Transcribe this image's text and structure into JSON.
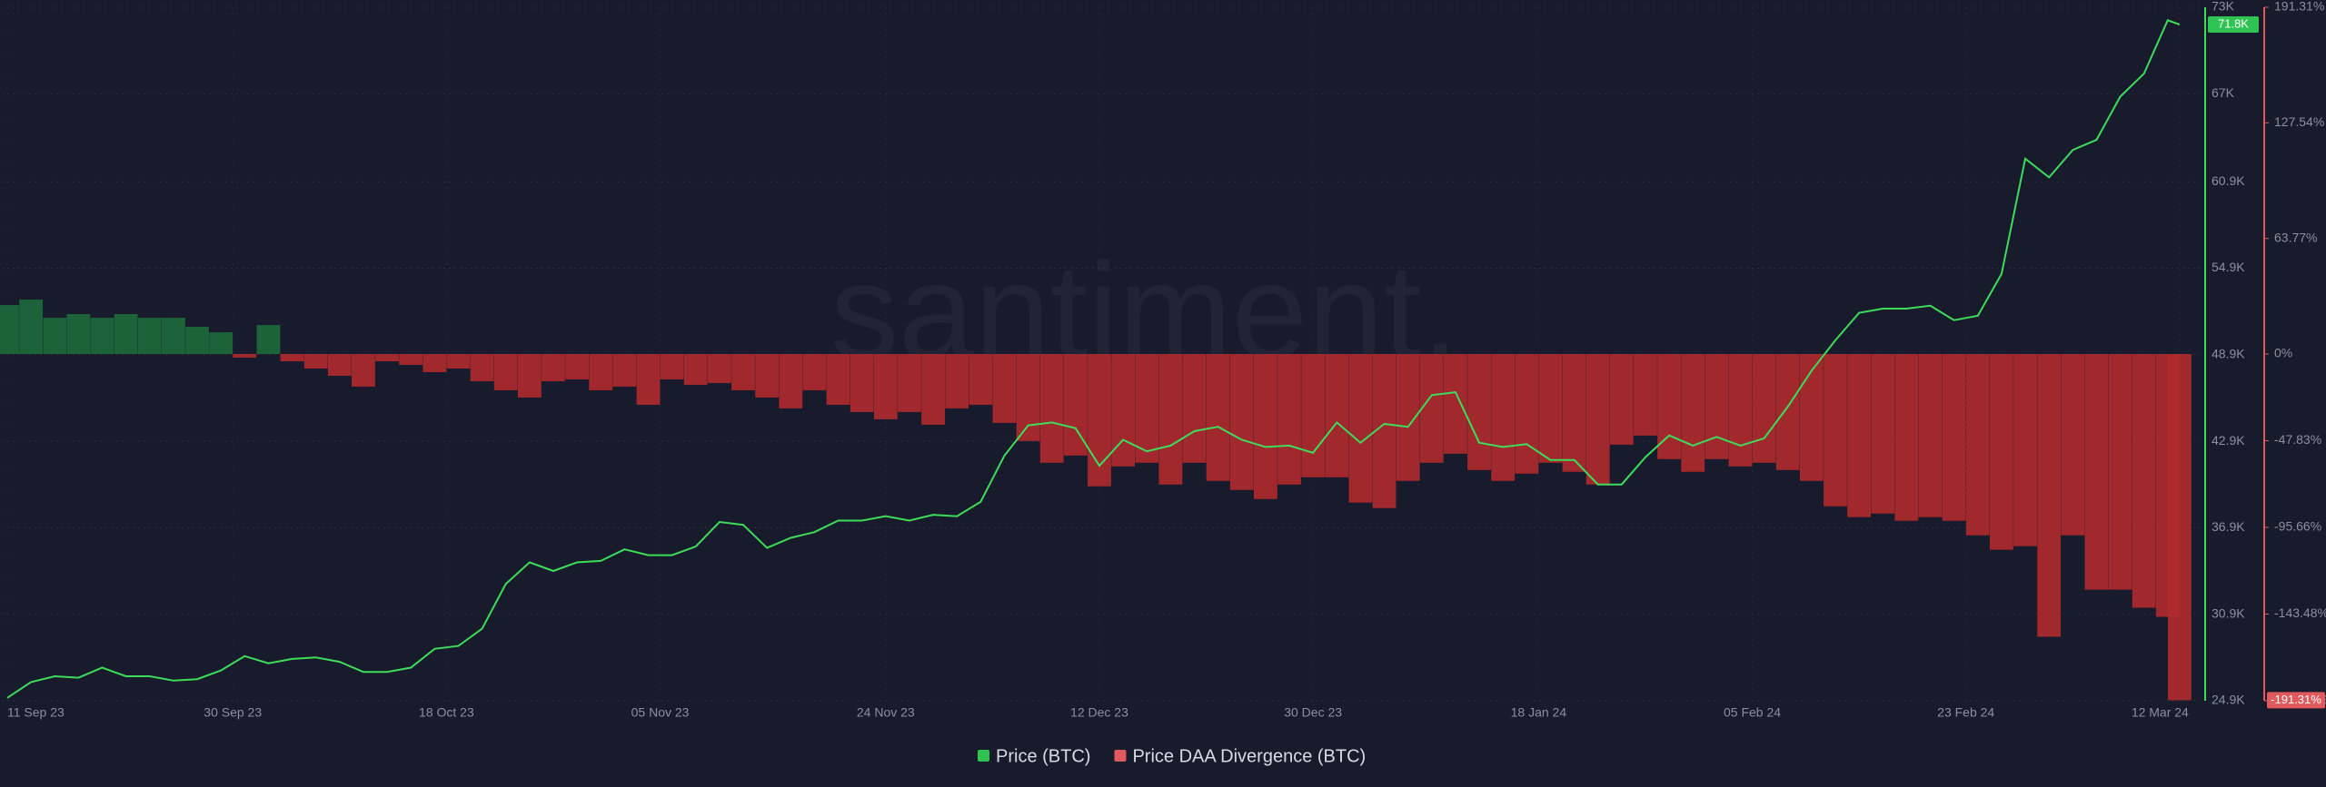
{
  "chart_data": {
    "type": "line_bar",
    "watermark": "santiment.",
    "x": [
      "2023-09-11",
      "2023-09-13",
      "2023-09-15",
      "2023-09-17",
      "2023-09-19",
      "2023-09-21",
      "2023-09-23",
      "2023-09-25",
      "2023-09-27",
      "2023-09-29",
      "2023-10-01",
      "2023-10-03",
      "2023-10-05",
      "2023-10-07",
      "2023-10-09",
      "2023-10-11",
      "2023-10-13",
      "2023-10-15",
      "2023-10-17",
      "2023-10-19",
      "2023-10-21",
      "2023-10-23",
      "2023-10-25",
      "2023-10-27",
      "2023-10-29",
      "2023-10-31",
      "2023-11-02",
      "2023-11-04",
      "2023-11-06",
      "2023-11-08",
      "2023-11-10",
      "2023-11-12",
      "2023-11-14",
      "2023-11-16",
      "2023-11-18",
      "2023-11-20",
      "2023-11-22",
      "2023-11-24",
      "2023-11-26",
      "2023-11-28",
      "2023-11-30",
      "2023-12-02",
      "2023-12-04",
      "2023-12-06",
      "2023-12-08",
      "2023-12-10",
      "2023-12-12",
      "2023-12-14",
      "2023-12-16",
      "2023-12-18",
      "2023-12-20",
      "2023-12-22",
      "2023-12-24",
      "2023-12-26",
      "2023-12-28",
      "2023-12-30",
      "2024-01-01",
      "2024-01-03",
      "2024-01-05",
      "2024-01-07",
      "2024-01-09",
      "2024-01-11",
      "2024-01-13",
      "2024-01-15",
      "2024-01-17",
      "2024-01-19",
      "2024-01-21",
      "2024-01-23",
      "2024-01-25",
      "2024-01-27",
      "2024-01-29",
      "2024-01-31",
      "2024-02-02",
      "2024-02-04",
      "2024-02-06",
      "2024-02-08",
      "2024-02-10",
      "2024-02-12",
      "2024-02-14",
      "2024-02-16",
      "2024-02-18",
      "2024-02-20",
      "2024-02-22",
      "2024-02-24",
      "2024-02-26",
      "2024-02-28",
      "2024-03-01",
      "2024-03-03",
      "2024-03-05",
      "2024-03-07",
      "2024-03-09",
      "2024-03-11",
      "2024-03-12"
    ],
    "xlim": [
      "2023-09-11",
      "2024-03-14"
    ],
    "xticks": [
      {
        "value": "2023-09-11",
        "label": "11 Sep 23"
      },
      {
        "value": "2023-09-30",
        "label": "30 Sep 23"
      },
      {
        "value": "2023-10-18",
        "label": "18 Oct 23"
      },
      {
        "value": "2023-11-05",
        "label": "05 Nov 23"
      },
      {
        "value": "2023-11-24",
        "label": "24 Nov 23"
      },
      {
        "value": "2023-12-12",
        "label": "12 Dec 23"
      },
      {
        "value": "2023-12-30",
        "label": "30 Dec 23"
      },
      {
        "value": "2024-01-18",
        "label": "18 Jan 24"
      },
      {
        "value": "2024-02-05",
        "label": "05 Feb 24"
      },
      {
        "value": "2024-02-23",
        "label": "23 Feb 24"
      },
      {
        "value": "2024-03-12",
        "label": "12 Mar 24"
      }
    ],
    "ylim": [
      24900,
      73000
    ],
    "yticks": [
      {
        "value": 24900,
        "label": "24.9K"
      },
      {
        "value": 30900,
        "label": "30.9K"
      },
      {
        "value": 36900,
        "label": "36.9K"
      },
      {
        "value": 42900,
        "label": "42.9K"
      },
      {
        "value": 48900,
        "label": "48.9K"
      },
      {
        "value": 54900,
        "label": "54.9K"
      },
      {
        "value": 60900,
        "label": "60.9K"
      },
      {
        "value": 67000,
        "label": "67K"
      },
      {
        "value": 73000,
        "label": "73K"
      }
    ],
    "y2lim": [
      -191.31,
      191.31
    ],
    "y2ticks": [
      {
        "value": -191.31,
        "label": "-191.31%"
      },
      {
        "value": -143.48,
        "label": "-143.48%"
      },
      {
        "value": -95.66,
        "label": "-95.66%"
      },
      {
        "value": -47.83,
        "label": "-47.83%"
      },
      {
        "value": 0,
        "label": "0%"
      },
      {
        "value": 63.77,
        "label": "63.77%"
      },
      {
        "value": 127.54,
        "label": "127.54%"
      },
      {
        "value": 191.31,
        "label": "191.31%"
      }
    ],
    "grid": true,
    "series": [
      {
        "name": "Price (BTC)",
        "color": "#3ddc5a",
        "badge": "71.8K",
        "values": [
          25100,
          26200,
          26600,
          26500,
          27200,
          26600,
          26600,
          26300,
          26400,
          27000,
          28000,
          27500,
          27800,
          27900,
          27600,
          26900,
          26900,
          27200,
          28500,
          28700,
          29900,
          33000,
          34500,
          33900,
          34500,
          34600,
          35400,
          35000,
          35000,
          35600,
          37300,
          37100,
          35500,
          36200,
          36600,
          37400,
          37400,
          37700,
          37400,
          37800,
          37700,
          38700,
          41900,
          44000,
          44200,
          43800,
          41200,
          43000,
          42200,
          42600,
          43600,
          43900,
          43000,
          42500,
          42600,
          42100,
          44200,
          42800,
          44100,
          43900,
          46100,
          46300,
          42800,
          42500,
          42700,
          41600,
          41600,
          39900,
          39900,
          41800,
          43300,
          42600,
          43200,
          42600,
          43100,
          45300,
          47800,
          49900,
          51800,
          52100,
          52100,
          52300,
          51300,
          51600,
          54500,
          62500,
          61200,
          63100,
          63800,
          66800,
          68400,
          72100,
          71800
        ]
      },
      {
        "name": "Price DAA Divergence (BTC)",
        "color": "#b02a2e",
        "positive_color": "#1e6b3c",
        "axis": "y2",
        "badge": "-191.31%",
        "values": [
          27,
          30,
          20,
          22,
          20,
          22,
          20,
          20,
          15,
          12,
          -2,
          16,
          -4,
          -8,
          -12,
          -18,
          -4,
          -6,
          -10,
          -8,
          -15,
          -20,
          -24,
          -15,
          -14,
          -20,
          -18,
          -28,
          -14,
          -17,
          -16,
          -20,
          -24,
          -30,
          -20,
          -28,
          -32,
          -36,
          -32,
          -39,
          -30,
          -28,
          -38,
          -48,
          -60,
          -56,
          -73,
          -62,
          -60,
          -72,
          -60,
          -70,
          -75,
          -80,
          -72,
          -68,
          -68,
          -82,
          -85,
          -70,
          -60,
          -55,
          -64,
          -70,
          -66,
          -60,
          -65,
          -72,
          -50,
          -45,
          -58,
          -65,
          -58,
          -62,
          -60,
          -64,
          -70,
          -84,
          -90,
          -88,
          -92,
          -90,
          -92,
          -100,
          -108,
          -106,
          -156,
          -100,
          -130,
          -130,
          -140,
          -145,
          -191
        ]
      }
    ]
  }
}
